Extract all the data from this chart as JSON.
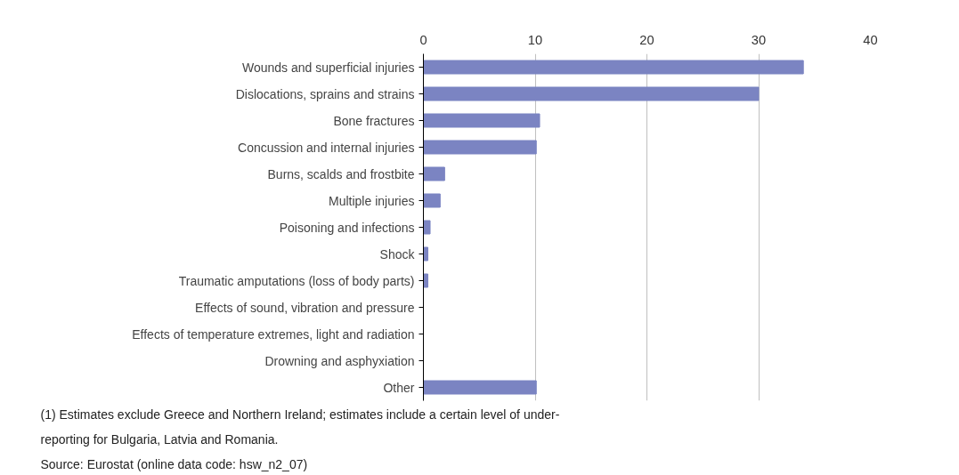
{
  "chart_data": {
    "type": "bar",
    "orientation": "horizontal",
    "categories": [
      "Wounds and superficial injuries",
      "Dislocations, sprains and strains",
      "Bone fractures",
      "Concussion and internal injuries",
      "Burns, scalds and frostbite",
      "Multiple injuries",
      "Poisoning and infections",
      "Shock",
      "Traumatic amputations (loss of body parts)",
      "Effects of sound, vibration and pressure",
      "Effects of temperature extremes, light and radiation",
      "Drowning and asphyxiation",
      "Other"
    ],
    "values": [
      34.0,
      30.0,
      10.4,
      10.1,
      1.9,
      1.5,
      0.6,
      0.4,
      0.4,
      0,
      0,
      0,
      10.1
    ],
    "color": "#7b84c2",
    "xlim": [
      0,
      40
    ],
    "xticks": [
      0,
      10,
      20,
      30,
      40
    ],
    "grid": "x",
    "annotations": [
      "(1) Estimates exclude Greece and Northern Ireland; estimates include a certain level of under-reporting for Bulgaria, Latvia and Romania.",
      "Source: Eurostat (online data code: hsw_n2_07)"
    ]
  }
}
